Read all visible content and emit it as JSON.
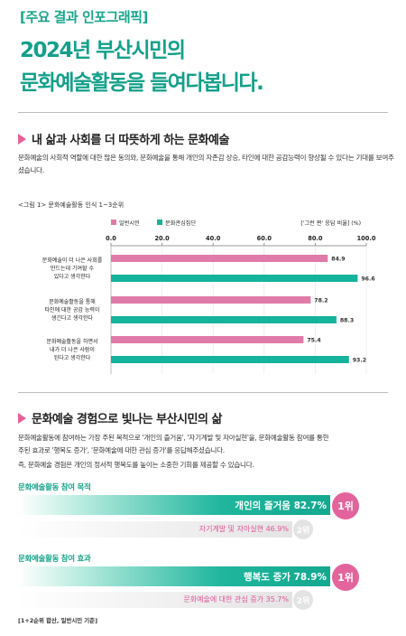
{
  "header": {
    "tag": "[주요 결과 인포그래픽]",
    "title_line1": "2024년 부산시민의",
    "title_line2": "문화예술활동을 들여다봅니다."
  },
  "section1": {
    "heading": "내 삶과 사회를 더 따뜻하게 하는 문화예술",
    "body": "문화예술의 사회적 역할에 대한 많은 동의와, 문화예술을 통해 개인의 자존감 상승, 타인에 대한 공감능력이 향상될 수 있다는 기대를 보여주셨습니다.",
    "figure_caption": "<그림 1> 문화예술활동 인식 1~3순위",
    "unit_note": "['그런 편' 응답 비율]",
    "unit": "(%)"
  },
  "section2": {
    "heading": "문화예술 경험으로 빛나는 부산시민의 삶",
    "body1": "문화예술활동에 참여하는 가장 주된 목적으로 '개인의 즐거움', '자기계발 및 자아실현'을, 문화예술활동 참여를 통한",
    "body2": "주된 효과로 '행복도 증가', '문화예술에 대한 관심 증가'를 응답해주셨습니다.",
    "body3": "즉, 문화예술 경험은 개인의 정서적 행복도를 높이는 소중한 기회를 제공할 수 있습니다.",
    "purpose": {
      "title": "문화예술활동 참여 목적",
      "first_label": "개인의 즐거움 82.7%",
      "first_rank": "1위",
      "second_label": "자기계발 및 자아실현 46.9%",
      "second_rank": "2위"
    },
    "effect": {
      "title": "문화예술활동 참여 효과",
      "first_label": "행복도 증가 78.9%",
      "first_rank": "1위",
      "second_label": "문화예술에 대한 관심 증가 35.7%",
      "second_rank": "2위"
    },
    "footnote": "[1+2순위 합산, 일반시민 기준]"
  },
  "colors": {
    "teal": "#15b39b",
    "pink": "#e07aa8",
    "title_green": "#14a08a"
  },
  "chart_data": {
    "type": "bar",
    "orientation": "horizontal",
    "title": "<그림 1> 문화예술활동 인식 1~3순위",
    "categories": [
      "문화예술이 더 나은 사회를 만드는데 기여할 수 있다고 생각한다",
      "문화예술활동을 통해 타인에 대한 공감 능력이 생긴다고 생각한다",
      "문화예술활동을 하면서 내가 더 나은 사람이 된다고 생각한다"
    ],
    "series": [
      {
        "name": "일반시민",
        "color": "#e07aa8",
        "values": [
          84.9,
          78.2,
          75.4
        ]
      },
      {
        "name": "문화관심집단",
        "color": "#15b39b",
        "values": [
          96.6,
          88.3,
          93.2
        ]
      }
    ],
    "xlim": [
      0,
      100
    ],
    "ticks": [
      "0.0",
      "20.0",
      "40.0",
      "60.0",
      "80.0",
      "100.0"
    ],
    "legend": "top-left",
    "grid": true
  }
}
